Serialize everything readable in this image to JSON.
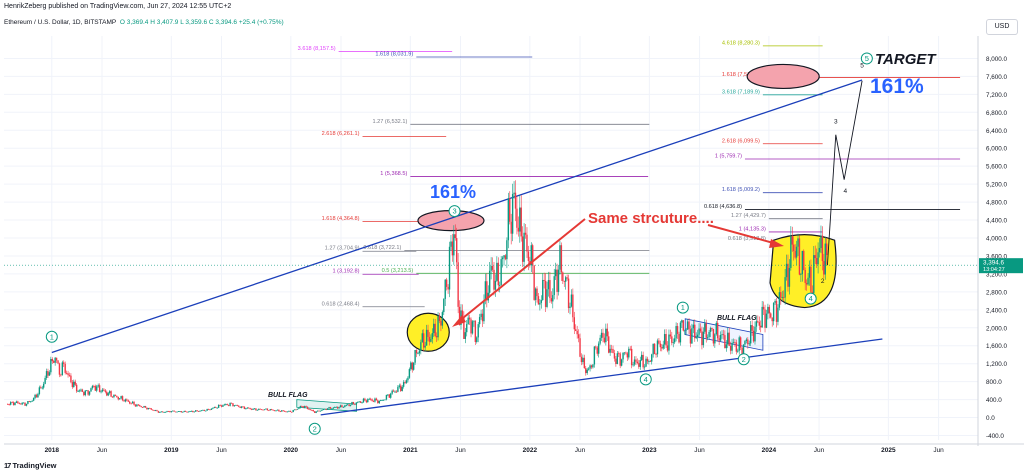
{
  "header": {
    "published_by": "HenrikZeberg published on TradingView.com, Jun 27, 2024 12:55 UTC+2",
    "symbol_line": "Ethereum / U.S. Dollar, 1D, BITSTAMP",
    "ohlc": "O 3,369.4  H 3,407.9  L 3,359.6  C 3,394.6  +25.4 (+0.75%)",
    "currency_button": "USD",
    "brand": "TradingView",
    "brand_glyph": "17"
  },
  "colors": {
    "up": "#089981",
    "down": "#f23645",
    "trendline": "#1b3fba",
    "grid": "#f0f3fa",
    "highlight_yellow": "#ffef27",
    "highlight_red": "#f4a3ad",
    "text_dark": "#131722",
    "target_blue": "#2962ff"
  },
  "chart_data": {
    "type": "candlestick",
    "title": "Ethereum / U.S. Dollar, 1D, BITSTAMP",
    "xlabel": "",
    "ylabel": "",
    "ylim": [
      -500,
      8500
    ],
    "y_ticks": [
      8000,
      7600,
      7200,
      6800,
      6400,
      6000,
      5600,
      5200,
      4800,
      4400,
      4000,
      3600,
      3200,
      2800,
      2400,
      2000,
      1600,
      1200,
      800,
      400,
      0,
      -400
    ],
    "y_tick_labels": [
      "8,000.0",
      "7,600.0",
      "7,200.0",
      "6,800.0",
      "6,400.0",
      "6,000.0",
      "5,600.0",
      "5,200.0",
      "4,800.0",
      "4,400.0",
      "4,000.0",
      "3,600.0",
      "3,200.0",
      "2,800.0",
      "2,400.0",
      "2,000.0",
      "1,600.0",
      "1,200.0",
      "800.0",
      "400.0",
      "0.0",
      "-400.0"
    ],
    "x_ticks": [
      {
        "label": "2018",
        "t": 2018.0,
        "bold": true
      },
      {
        "label": "Jun",
        "t": 2018.42
      },
      {
        "label": "2019",
        "t": 2019.0,
        "bold": true
      },
      {
        "label": "Jun",
        "t": 2019.42
      },
      {
        "label": "2020",
        "t": 2020.0,
        "bold": true
      },
      {
        "label": "Jun",
        "t": 2020.42
      },
      {
        "label": "2021",
        "t": 2021.0,
        "bold": true
      },
      {
        "label": "Jun",
        "t": 2021.42
      },
      {
        "label": "2022",
        "t": 2022.0,
        "bold": true
      },
      {
        "label": "Jun",
        "t": 2022.42
      },
      {
        "label": "2023",
        "t": 2023.0,
        "bold": true
      },
      {
        "label": "Jun",
        "t": 2023.42
      },
      {
        "label": "2024",
        "t": 2024.0,
        "bold": true
      },
      {
        "label": "Jun",
        "t": 2024.42
      },
      {
        "label": "2025",
        "t": 2025.0,
        "bold": true
      },
      {
        "label": "Jun",
        "t": 2025.42
      }
    ],
    "last_price": {
      "value": 3394.6,
      "label": "3,394.6",
      "countdown": "13:04:27"
    },
    "price_path": [
      {
        "t": 2017.62,
        "v": 300
      },
      {
        "t": 2017.7,
        "v": 330
      },
      {
        "t": 2017.78,
        "v": 300
      },
      {
        "t": 2017.85,
        "v": 420
      },
      {
        "t": 2017.92,
        "v": 700
      },
      {
        "t": 2017.98,
        "v": 1100
      },
      {
        "t": 2018.03,
        "v": 1380
      },
      {
        "t": 2018.06,
        "v": 1000
      },
      {
        "t": 2018.1,
        "v": 1150
      },
      {
        "t": 2018.15,
        "v": 850
      },
      {
        "t": 2018.22,
        "v": 600
      },
      {
        "t": 2018.3,
        "v": 550
      },
      {
        "t": 2018.35,
        "v": 700
      },
      {
        "t": 2018.42,
        "v": 600
      },
      {
        "t": 2018.5,
        "v": 500
      },
      {
        "t": 2018.6,
        "v": 400
      },
      {
        "t": 2018.7,
        "v": 280
      },
      {
        "t": 2018.8,
        "v": 210
      },
      {
        "t": 2018.9,
        "v": 120
      },
      {
        "t": 2019.0,
        "v": 140
      },
      {
        "t": 2019.1,
        "v": 130
      },
      {
        "t": 2019.2,
        "v": 140
      },
      {
        "t": 2019.3,
        "v": 170
      },
      {
        "t": 2019.42,
        "v": 270
      },
      {
        "t": 2019.5,
        "v": 300
      },
      {
        "t": 2019.6,
        "v": 220
      },
      {
        "t": 2019.7,
        "v": 180
      },
      {
        "t": 2019.8,
        "v": 180
      },
      {
        "t": 2019.9,
        "v": 150
      },
      {
        "t": 2020.0,
        "v": 130
      },
      {
        "t": 2020.1,
        "v": 260
      },
      {
        "t": 2020.2,
        "v": 120
      },
      {
        "t": 2020.3,
        "v": 200
      },
      {
        "t": 2020.42,
        "v": 240
      },
      {
        "t": 2020.55,
        "v": 330
      },
      {
        "t": 2020.65,
        "v": 400
      },
      {
        "t": 2020.75,
        "v": 360
      },
      {
        "t": 2020.85,
        "v": 560
      },
      {
        "t": 2020.95,
        "v": 730
      },
      {
        "t": 2021.03,
        "v": 1300
      },
      {
        "t": 2021.1,
        "v": 1700
      },
      {
        "t": 2021.17,
        "v": 1800
      },
      {
        "t": 2021.25,
        "v": 2100
      },
      {
        "t": 2021.32,
        "v": 3300
      },
      {
        "t": 2021.37,
        "v": 4300
      },
      {
        "t": 2021.4,
        "v": 2500
      },
      {
        "t": 2021.45,
        "v": 1900
      },
      {
        "t": 2021.5,
        "v": 2200
      },
      {
        "t": 2021.55,
        "v": 1800
      },
      {
        "t": 2021.62,
        "v": 2600
      },
      {
        "t": 2021.68,
        "v": 3300
      },
      {
        "t": 2021.72,
        "v": 3000
      },
      {
        "t": 2021.78,
        "v": 3500
      },
      {
        "t": 2021.83,
        "v": 4500
      },
      {
        "t": 2021.87,
        "v": 4800
      },
      {
        "t": 2021.92,
        "v": 4100
      },
      {
        "t": 2021.97,
        "v": 3800
      },
      {
        "t": 2022.02,
        "v": 3400
      },
      {
        "t": 2022.06,
        "v": 2500
      },
      {
        "t": 2022.12,
        "v": 2900
      },
      {
        "t": 2022.18,
        "v": 2700
      },
      {
        "t": 2022.25,
        "v": 3450
      },
      {
        "t": 2022.32,
        "v": 2800
      },
      {
        "t": 2022.38,
        "v": 2000
      },
      {
        "t": 2022.45,
        "v": 1100
      },
      {
        "t": 2022.5,
        "v": 1050
      },
      {
        "t": 2022.55,
        "v": 1500
      },
      {
        "t": 2022.62,
        "v": 1900
      },
      {
        "t": 2022.7,
        "v": 1350
      },
      {
        "t": 2022.76,
        "v": 1300
      },
      {
        "t": 2022.82,
        "v": 1500
      },
      {
        "t": 2022.87,
        "v": 1200
      },
      {
        "t": 2022.93,
        "v": 1250
      },
      {
        "t": 2022.98,
        "v": 1200
      },
      {
        "t": 2023.05,
        "v": 1550
      },
      {
        "t": 2023.12,
        "v": 1650
      },
      {
        "t": 2023.2,
        "v": 1750
      },
      {
        "t": 2023.28,
        "v": 2050
      },
      {
        "t": 2023.35,
        "v": 1900
      },
      {
        "t": 2023.42,
        "v": 1850
      },
      {
        "t": 2023.5,
        "v": 1900
      },
      {
        "t": 2023.58,
        "v": 1850
      },
      {
        "t": 2023.66,
        "v": 1650
      },
      {
        "t": 2023.72,
        "v": 1600
      },
      {
        "t": 2023.78,
        "v": 1550
      },
      {
        "t": 2023.84,
        "v": 1800
      },
      {
        "t": 2023.9,
        "v": 2050
      },
      {
        "t": 2023.96,
        "v": 2300
      },
      {
        "t": 2024.02,
        "v": 2300
      },
      {
        "t": 2024.08,
        "v": 2500
      },
      {
        "t": 2024.14,
        "v": 3000
      },
      {
        "t": 2024.2,
        "v": 3900
      },
      {
        "t": 2024.26,
        "v": 3500
      },
      {
        "t": 2024.31,
        "v": 3100
      },
      {
        "t": 2024.36,
        "v": 3000
      },
      {
        "t": 2024.41,
        "v": 3800
      },
      {
        "t": 2024.46,
        "v": 3600
      },
      {
        "t": 2024.49,
        "v": 3394.6
      }
    ],
    "projection_path": [
      {
        "t": 2024.49,
        "v": 3394.6
      },
      {
        "t": 2024.56,
        "v": 6300
      },
      {
        "t": 2024.63,
        "v": 5300
      },
      {
        "t": 2024.78,
        "v": 7500
      }
    ],
    "trendlines": [
      {
        "name": "upper-channel",
        "from": {
          "t": 2018.0,
          "v": 1450
        },
        "to": {
          "t": 2024.78,
          "v": 7520
        }
      },
      {
        "name": "lower-channel",
        "from": {
          "t": 2020.25,
          "v": 60
        },
        "to": {
          "t": 2024.95,
          "v": 1750
        }
      }
    ],
    "fib_levels": [
      {
        "label": "3.618 (8,157.5)",
        "value": 8157.5,
        "t0": 2020.4,
        "t1": 2021.35,
        "color": "#e040fb"
      },
      {
        "label": "1.618 (8,031.9)",
        "value": 8031.9,
        "t0": 2021.05,
        "t1": 2022.02,
        "color": "#3f51b5"
      },
      {
        "label": "1.27 (6,532.1)",
        "value": 6532.1,
        "t0": 2021.0,
        "t1": 2023.0,
        "color": "#787b86"
      },
      {
        "label": "2.618 (6,261.1)",
        "value": 6261.1,
        "t0": 2020.6,
        "t1": 2021.3,
        "color": "#e53935"
      },
      {
        "label": "1 (5,368.5)",
        "value": 5368.5,
        "t0": 2021.0,
        "t1": 2022.99,
        "color": "#9c27b0"
      },
      {
        "label": "1.618 (4,364.8)",
        "value": 4364.8,
        "t0": 2020.6,
        "t1": 2021.3,
        "color": "#e53935"
      },
      {
        "label": "1.27 (3,704.9)",
        "value": 3704.9,
        "t0": 2020.6,
        "t1": 2021.05,
        "color": "#787b86"
      },
      {
        "label": "0.618 (3,722.1)",
        "value": 3722.1,
        "t0": 2020.95,
        "t1": 2023.0,
        "color": "#787b86"
      },
      {
        "label": "1 (3,192.8)",
        "value": 3192.8,
        "t0": 2020.6,
        "t1": 2021.07,
        "color": "#9c27b0"
      },
      {
        "label": "0.5 (3,213.5)",
        "value": 3213.5,
        "t0": 2021.05,
        "t1": 2023.0,
        "color": "#4caf50"
      },
      {
        "label": "0.618 (2,468.4)",
        "value": 2468.4,
        "t0": 2020.6,
        "t1": 2021.12,
        "color": "#787b86"
      },
      {
        "label": "4.618 (8,280.3)",
        "value": 8280.3,
        "t0": 2023.95,
        "t1": 2024.45,
        "color": "#a8c000"
      },
      {
        "label": "1.618 (7,576.5)",
        "value": 7576.5,
        "t0": 2023.95,
        "t1": 2025.6,
        "color": "#e53935"
      },
      {
        "label": "3.618 (7,189.9)",
        "value": 7189.9,
        "t0": 2023.95,
        "t1": 2024.45,
        "color": "#26a69a"
      },
      {
        "label": "2.618 (6,099.5)",
        "value": 6099.5,
        "t0": 2023.95,
        "t1": 2024.45,
        "color": "#e53935"
      },
      {
        "label": "1 (5,759.7)",
        "value": 5759.7,
        "t0": 2023.8,
        "t1": 2025.6,
        "color": "#9c27b0"
      },
      {
        "label": "1.618 (5,009.2)",
        "value": 5009.2,
        "t0": 2023.95,
        "t1": 2024.45,
        "color": "#3f51b5"
      },
      {
        "label": "0.618 (4,636.8)",
        "value": 4636.8,
        "t0": 2023.8,
        "t1": 2025.6,
        "color": "#131722"
      },
      {
        "label": "1.27 (4,429.7)",
        "value": 4429.7,
        "t0": 2024.0,
        "t1": 2024.45,
        "color": "#787b86"
      },
      {
        "label": "1 (4,135.3)",
        "value": 4135.3,
        "t0": 2024.0,
        "t1": 2024.45,
        "color": "#9c27b0"
      },
      {
        "label": "0.618 (3,918.8)",
        "value": 3918.8,
        "t0": 2024.0,
        "t1": 2024.45,
        "color": "#787b86"
      }
    ],
    "wave_labels": [
      {
        "text": "1",
        "t": 2018.0,
        "v": 1800,
        "style": "circle"
      },
      {
        "text": "2",
        "t": 2020.2,
        "v": -250,
        "style": "circle"
      },
      {
        "text": "3",
        "t": 2021.37,
        "v": 4600,
        "style": "circle"
      },
      {
        "text": "4",
        "t": 2022.97,
        "v": 850,
        "style": "circle"
      },
      {
        "text": "1",
        "t": 2023.28,
        "v": 2450,
        "style": "circle"
      },
      {
        "text": "2",
        "t": 2023.79,
        "v": 1300,
        "style": "circle"
      },
      {
        "text": "4",
        "t": 2024.35,
        "v": 2650,
        "style": "circle"
      },
      {
        "text": "5",
        "t": 2024.82,
        "v": 8000,
        "style": "circle"
      },
      {
        "text": "3",
        "t": 2024.56,
        "v": 6550,
        "style": "plain"
      },
      {
        "text": "4",
        "t": 2024.64,
        "v": 5000,
        "style": "plain"
      },
      {
        "text": "5",
        "t": 2024.78,
        "v": 7800,
        "style": "plain"
      },
      {
        "text": "2",
        "t": 2024.45,
        "v": 3000,
        "style": "plain"
      }
    ],
    "annotations": {
      "target": "TARGET",
      "pct_left": "161%",
      "pct_right": "161%",
      "same_structure": "Same strcuture....",
      "bull_flag_1": "BULL FLAG",
      "bull_flag_2": "BULL FLAG"
    }
  }
}
